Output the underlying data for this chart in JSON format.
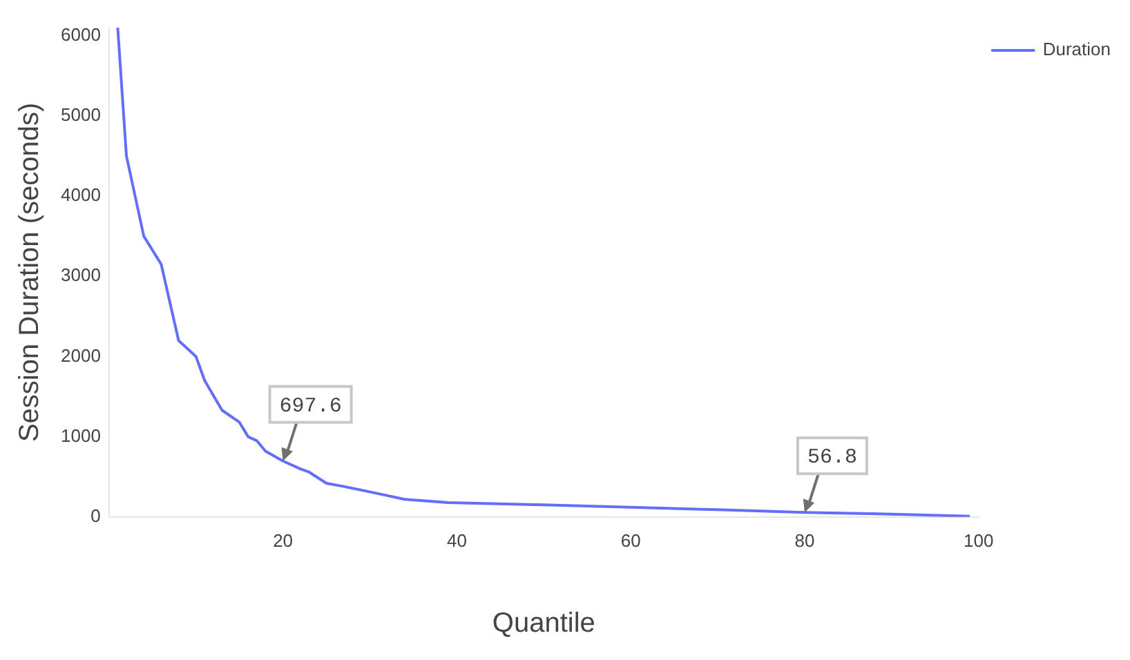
{
  "chart_data": {
    "type": "line",
    "xlabel": "Quantile",
    "ylabel": "Session Duration (seconds)",
    "x": [
      1,
      2,
      4,
      6,
      8,
      10,
      11,
      13,
      15,
      16,
      17,
      18,
      20,
      22,
      23,
      25,
      27,
      31,
      34,
      39,
      50,
      60,
      70,
      80,
      90,
      99
    ],
    "series": [
      {
        "name": "Duration",
        "color": "#636efa",
        "values": [
          6100,
          4500,
          3500,
          3150,
          2200,
          2000,
          1700,
          1330,
          1180,
          1000,
          950,
          820,
          697.6,
          600,
          560,
          420,
          380,
          290,
          220,
          180,
          150,
          120,
          90,
          56.8,
          35,
          10
        ]
      }
    ],
    "xlim": [
      0,
      100
    ],
    "xticks": [
      20,
      40,
      60,
      80,
      100
    ],
    "ylim": [
      0,
      6100
    ],
    "yticks": [
      0,
      1000,
      2000,
      3000,
      4000,
      5000,
      6000
    ],
    "annotations": [
      {
        "text": "697.6",
        "x": 20,
        "y": 697.6
      },
      {
        "text": "56.8",
        "x": 80,
        "y": 56.8
      }
    ],
    "grid": false,
    "legend": "top right",
    "marker": "none",
    "line_style": "solid"
  }
}
